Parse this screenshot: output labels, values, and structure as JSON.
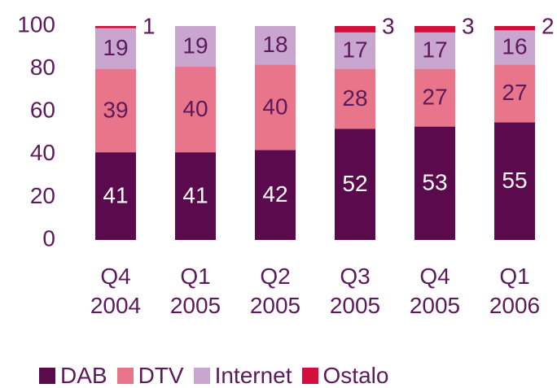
{
  "chart_data": {
    "type": "stacked_bar",
    "categories": [
      "Q4 2004",
      "Q1 2005",
      "Q2 2005",
      "Q3 2005",
      "Q4 2005",
      "Q1 2006"
    ],
    "series": [
      {
        "name": "DAB",
        "color": "#5c0a4e",
        "values": [
          41,
          41,
          42,
          52,
          53,
          55
        ]
      },
      {
        "name": "DTV",
        "color": "#e8758a",
        "values": [
          39,
          40,
          40,
          28,
          27,
          27
        ]
      },
      {
        "name": "Internet",
        "color": "#c9a6d0",
        "values": [
          19,
          19,
          18,
          17,
          17,
          16
        ]
      },
      {
        "name": "Ostalo",
        "color": "#d40f3c",
        "values": [
          1,
          null,
          null,
          3,
          3,
          2
        ]
      }
    ],
    "ylim": [
      0,
      100
    ],
    "yticks": [
      0,
      20,
      40,
      60,
      80,
      100
    ],
    "grid": false,
    "legend": "bottom"
  }
}
